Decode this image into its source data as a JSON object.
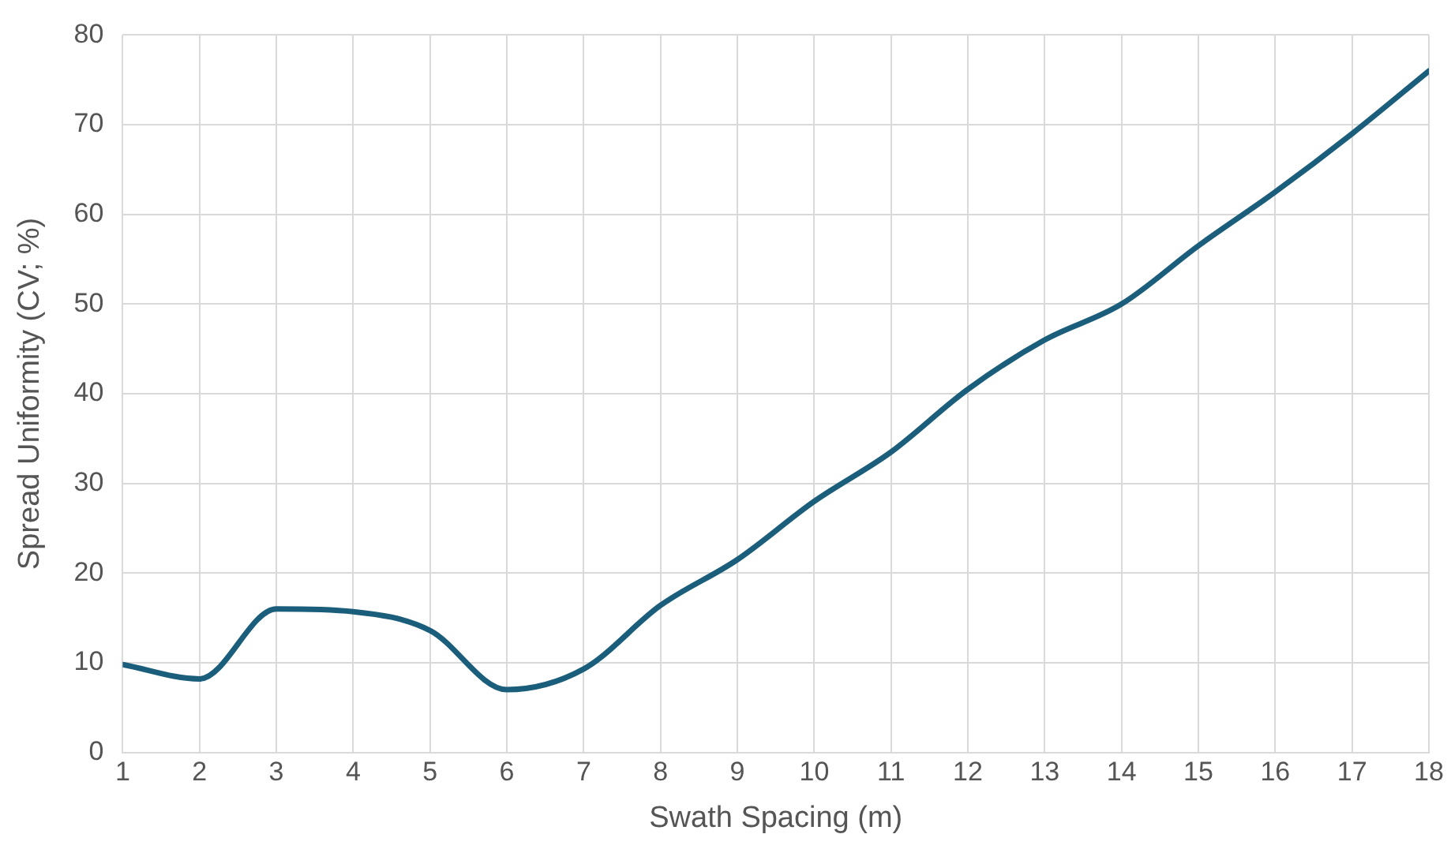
{
  "chart_data": {
    "type": "line",
    "xlabel": "Swath Spacing (m)",
    "ylabel": "Spread Uniformity (CV; %)",
    "x": [
      1,
      2,
      3,
      4,
      5,
      6,
      7,
      8,
      9,
      10,
      11,
      12,
      13,
      14,
      15,
      16,
      17,
      18
    ],
    "series": [
      {
        "color": "#1b5e7b",
        "values": [
          9.8,
          8.2,
          16,
          15.7,
          13.6,
          7,
          9.3,
          16.4,
          21.5,
          28,
          33.5,
          40.5,
          46,
          50,
          56.5,
          62.5,
          69,
          76
        ]
      }
    ],
    "xlim": [
      1,
      18
    ],
    "xticks": [
      1,
      2,
      3,
      4,
      5,
      6,
      7,
      8,
      9,
      10,
      11,
      12,
      13,
      14,
      15,
      16,
      17,
      18
    ],
    "ylim": [
      0,
      80
    ],
    "yticks": [
      0,
      10,
      20,
      30,
      40,
      50,
      60,
      70,
      80
    ],
    "grid": true,
    "marker": "none",
    "line_style": "solid"
  }
}
